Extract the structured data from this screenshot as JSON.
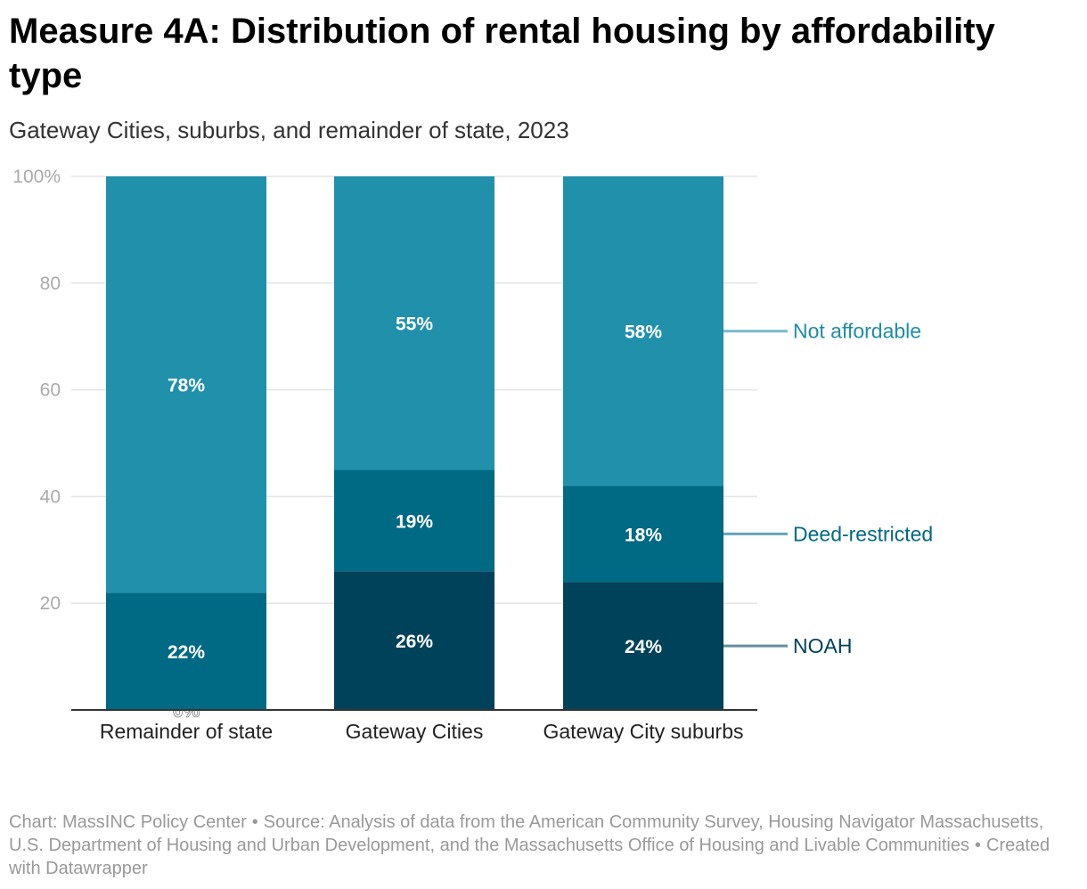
{
  "header": {
    "title": "Measure 4A: Distribution of rental housing by affordability type",
    "subtitle": "Gateway Cities, suburbs, and remainder of state, 2023"
  },
  "chart_data": {
    "type": "bar",
    "stacked": true,
    "categories": [
      "Remainder of state",
      "Gateway Cities",
      "Gateway City suburbs"
    ],
    "series": [
      {
        "name": "NOAH",
        "values": [
          0,
          26,
          24
        ],
        "labels": [
          "0%",
          "26%",
          "24%"
        ],
        "color": "#00425a"
      },
      {
        "name": "Deed-restricted",
        "values": [
          22,
          19,
          18
        ],
        "labels": [
          "22%",
          "19%",
          "18%"
        ],
        "color": "#006983"
      },
      {
        "name": "Not affordable",
        "values": [
          78,
          55,
          58
        ],
        "labels": [
          "78%",
          "55%",
          "58%"
        ],
        "color": "#2190ab"
      }
    ],
    "legend_colors": {
      "NOAH": "#00425a",
      "Deed-restricted": "#006983",
      "Not affordable": "#1e8da6"
    },
    "y_ticks": [
      {
        "value": 20,
        "label": "20"
      },
      {
        "value": 40,
        "label": "40"
      },
      {
        "value": 60,
        "label": "60"
      },
      {
        "value": 80,
        "label": "80"
      },
      {
        "value": 100,
        "label": "100%"
      }
    ],
    "ylim": [
      0,
      100
    ],
    "grid": true,
    "legend": "right, inline labels"
  },
  "footer": {
    "chart_credit": "Chart: MassINC Policy Center",
    "source": "Source: Analysis of data from the American Community Survey, Housing Navigator Massachusetts, U.S. Department of Housing and Urban Development, and the Massachusetts Office of Housing and Livable Communities",
    "tool": "Created with Datawrapper",
    "separator": "•"
  }
}
